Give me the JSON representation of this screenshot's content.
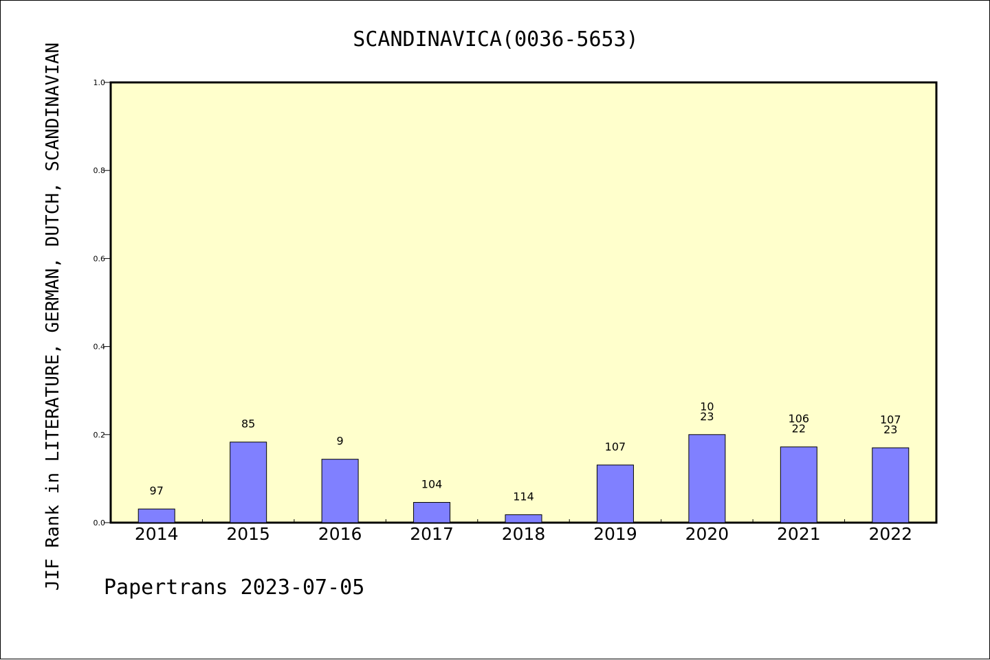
{
  "chart_data": {
    "type": "bar",
    "title": "SCANDINAVICA(0036-5653)",
    "ylabel": "JIF Rank in LITERATURE, GERMAN, DUTCH, SCANDINAVIAN",
    "xlabel": "",
    "ylim": [
      0,
      1.0
    ],
    "y_ticks": [
      "0.0",
      "0.2",
      "0.4",
      "0.6",
      "0.8",
      "1.0"
    ],
    "categories": [
      "2014",
      "2015",
      "2016",
      "2017",
      "2018",
      "2019",
      "2020",
      "2021",
      "2022"
    ],
    "values": [
      0.031,
      0.183,
      0.144,
      0.046,
      0.018,
      0.131,
      0.2,
      0.172,
      0.17
    ],
    "bar_labels": [
      [
        "97"
      ],
      [
        "85"
      ],
      [
        "9"
      ],
      [
        "104"
      ],
      [
        "114"
      ],
      [
        "107"
      ],
      [
        "10",
        "23"
      ],
      [
        "106",
        "22"
      ],
      [
        "107",
        "23"
      ]
    ],
    "grid": false,
    "legend": "none",
    "colors": {
      "plot_background": "#ffffcc",
      "bar_fill": "#8080ff",
      "bar_stroke": "#000000",
      "axis": "#000000"
    }
  },
  "footer": {
    "credit": "Papertrans 2023-07-05"
  }
}
